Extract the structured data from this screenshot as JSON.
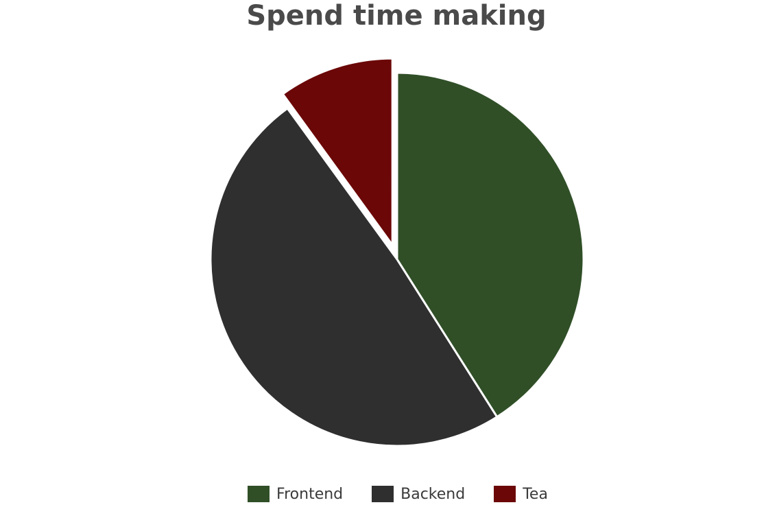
{
  "chart_data": {
    "type": "pie",
    "title": "Spend time making",
    "categories": [
      "Frontend",
      "Backend",
      "Tea"
    ],
    "values": [
      41,
      49,
      10
    ],
    "colors": [
      "#304f27",
      "#2f2f2f",
      "#6b0707"
    ],
    "exploded": [
      false,
      false,
      true
    ],
    "legend_position": "bottom"
  }
}
